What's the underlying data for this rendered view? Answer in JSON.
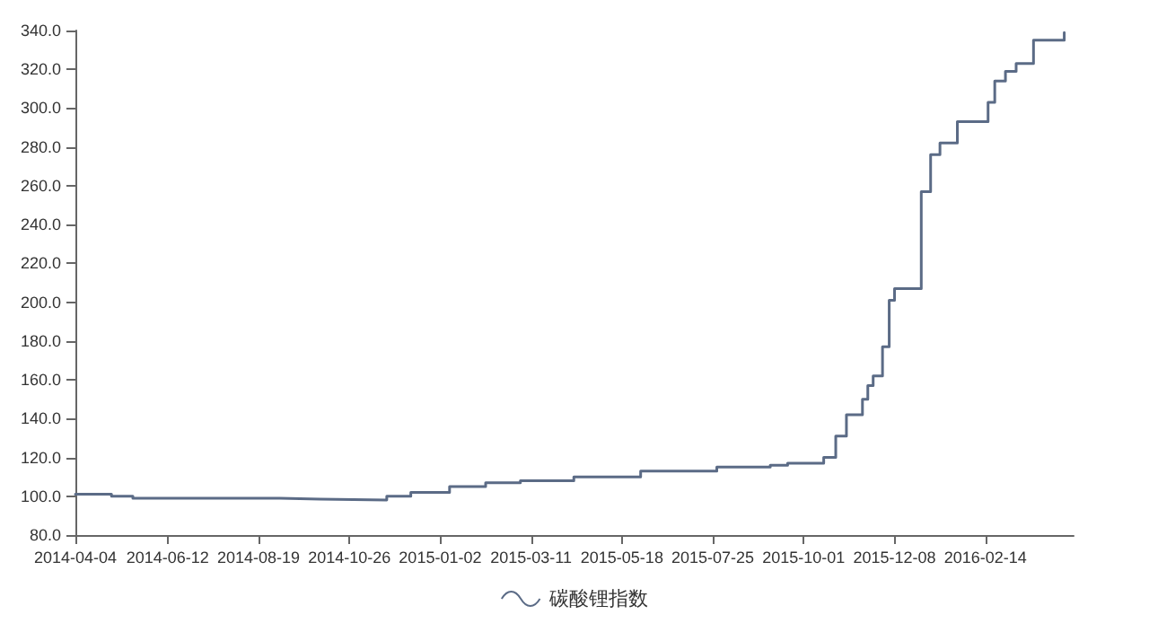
{
  "chart_data": {
    "type": "step",
    "legend": "bottom",
    "grid": false,
    "marker": "none",
    "line_style": "solid",
    "xlim": [
      "2014-04-04",
      "2016-04-20"
    ],
    "xticks": [
      "2014-04-04",
      "2014-06-12",
      "2014-08-19",
      "2014-10-26",
      "2015-01-02",
      "2015-03-11",
      "2015-05-18",
      "2015-07-25",
      "2015-10-01",
      "2015-12-08",
      "2016-02-14"
    ],
    "ylim": [
      80,
      340
    ],
    "yticks": [
      {
        "value": 80,
        "label": "80.0"
      },
      {
        "value": 100,
        "label": "100.0"
      },
      {
        "value": 120,
        "label": "120.0"
      },
      {
        "value": 140,
        "label": "140.0"
      },
      {
        "value": 160,
        "label": "160.0"
      },
      {
        "value": 180,
        "label": "180.0"
      },
      {
        "value": 200,
        "label": "200.0"
      },
      {
        "value": 220,
        "label": "220.0"
      },
      {
        "value": 240,
        "label": "240.0"
      },
      {
        "value": 260,
        "label": "260.0"
      },
      {
        "value": 280,
        "label": "280.0"
      },
      {
        "value": 300,
        "label": "300.0"
      },
      {
        "value": 320,
        "label": "320.0"
      },
      {
        "value": 340,
        "label": "340.0"
      }
    ],
    "series": [
      {
        "name": "碳酸锂指数",
        "color": "#5b6b86",
        "x": [
          "2014-04-04",
          "2014-05-01",
          "2014-05-17",
          "2014-09-04",
          "2014-10-04",
          "2014-11-23",
          "2014-12-11",
          "2015-01-09",
          "2015-02-05",
          "2015-03-03",
          "2015-04-12",
          "2015-06-01",
          "2015-07-28",
          "2015-09-06",
          "2015-09-19",
          "2015-10-16",
          "2015-10-25",
          "2015-11-02",
          "2015-11-14",
          "2015-11-18",
          "2015-11-22",
          "2015-11-29",
          "2015-12-04",
          "2015-12-08",
          "2015-12-28",
          "2016-01-04",
          "2016-01-11",
          "2016-01-24",
          "2016-02-16",
          "2016-02-21",
          "2016-02-29",
          "2016-03-08",
          "2016-03-21",
          "2016-04-13"
        ],
        "values": [
          101,
          100,
          99,
          98.5,
          98,
          100,
          102,
          105,
          107,
          108,
          110,
          113,
          115,
          116,
          117,
          120,
          131,
          142,
          150,
          157,
          162,
          177,
          201,
          207,
          257,
          276,
          282,
          293,
          303,
          314,
          319,
          323,
          335,
          339
        ]
      }
    ]
  }
}
